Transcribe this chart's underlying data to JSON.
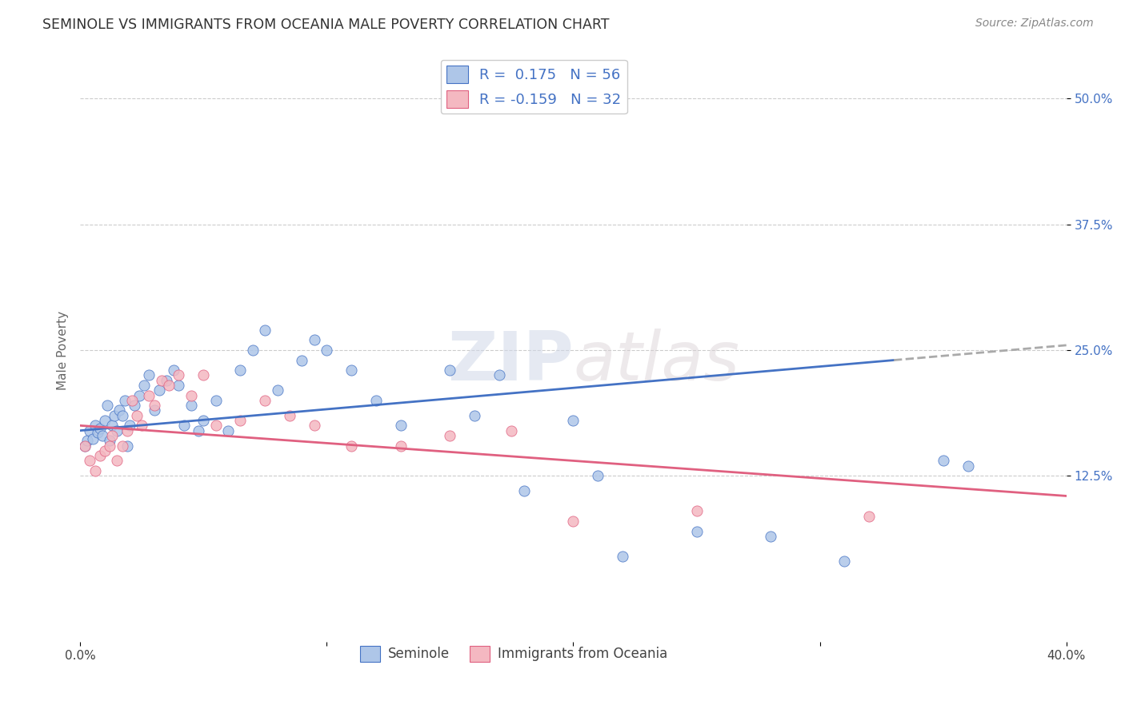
{
  "title": "SEMINOLE VS IMMIGRANTS FROM OCEANIA MALE POVERTY CORRELATION CHART",
  "source": "Source: ZipAtlas.com",
  "ylabel": "Male Poverty",
  "ytick_labels": [
    "12.5%",
    "25.0%",
    "37.5%",
    "50.0%"
  ],
  "ytick_values": [
    0.125,
    0.25,
    0.375,
    0.5
  ],
  "xmin": 0.0,
  "xmax": 0.4,
  "ymin": -0.04,
  "ymax": 0.54,
  "seminole_color": "#aec6e8",
  "oceania_color": "#f4b8c1",
  "trend_blue": "#4472c4",
  "trend_pink": "#e06080",
  "trend_dashed": "#aaaaaa",
  "seminole_x": [
    0.002,
    0.003,
    0.004,
    0.005,
    0.006,
    0.007,
    0.008,
    0.009,
    0.01,
    0.011,
    0.012,
    0.013,
    0.014,
    0.015,
    0.016,
    0.017,
    0.018,
    0.019,
    0.02,
    0.022,
    0.024,
    0.026,
    0.028,
    0.03,
    0.032,
    0.035,
    0.038,
    0.04,
    0.042,
    0.045,
    0.048,
    0.05,
    0.055,
    0.06,
    0.065,
    0.07,
    0.075,
    0.08,
    0.09,
    0.095,
    0.1,
    0.11,
    0.12,
    0.13,
    0.15,
    0.16,
    0.17,
    0.18,
    0.2,
    0.21,
    0.22,
    0.25,
    0.28,
    0.31,
    0.35,
    0.36
  ],
  "seminole_y": [
    0.155,
    0.16,
    0.17,
    0.162,
    0.175,
    0.168,
    0.172,
    0.165,
    0.18,
    0.195,
    0.16,
    0.175,
    0.185,
    0.17,
    0.19,
    0.185,
    0.2,
    0.155,
    0.175,
    0.195,
    0.205,
    0.215,
    0.225,
    0.19,
    0.21,
    0.22,
    0.23,
    0.215,
    0.175,
    0.195,
    0.17,
    0.18,
    0.2,
    0.17,
    0.23,
    0.25,
    0.27,
    0.21,
    0.24,
    0.26,
    0.25,
    0.23,
    0.2,
    0.175,
    0.23,
    0.185,
    0.225,
    0.11,
    0.18,
    0.125,
    0.045,
    0.07,
    0.065,
    0.04,
    0.14,
    0.135
  ],
  "oceania_x": [
    0.002,
    0.004,
    0.006,
    0.008,
    0.01,
    0.012,
    0.013,
    0.015,
    0.017,
    0.019,
    0.021,
    0.023,
    0.025,
    0.028,
    0.03,
    0.033,
    0.036,
    0.04,
    0.045,
    0.05,
    0.055,
    0.065,
    0.075,
    0.085,
    0.095,
    0.11,
    0.13,
    0.15,
    0.175,
    0.2,
    0.25,
    0.32
  ],
  "oceania_y": [
    0.155,
    0.14,
    0.13,
    0.145,
    0.15,
    0.155,
    0.165,
    0.14,
    0.155,
    0.17,
    0.2,
    0.185,
    0.175,
    0.205,
    0.195,
    0.22,
    0.215,
    0.225,
    0.205,
    0.225,
    0.175,
    0.18,
    0.2,
    0.185,
    0.175,
    0.155,
    0.155,
    0.165,
    0.17,
    0.08,
    0.09,
    0.085
  ],
  "trend_blue_x0": 0.0,
  "trend_blue_y0": 0.17,
  "trend_blue_x1": 0.33,
  "trend_blue_y1": 0.24,
  "trend_blue_xdash0": 0.33,
  "trend_blue_xdash1": 0.4,
  "trend_pink_x0": 0.0,
  "trend_pink_y0": 0.175,
  "trend_pink_x1": 0.4,
  "trend_pink_y1": 0.105
}
